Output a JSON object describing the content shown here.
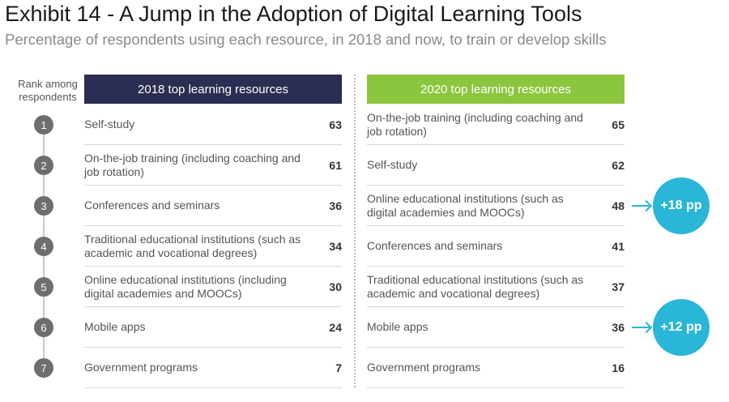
{
  "title": "Exhibit 14 - A Jump in the Adoption of Digital Learning Tools",
  "subtitle": "Percentage of respondents using each resource, in 2018 and now, to train or develop skills",
  "rank_header": "Rank among respondents",
  "headers": {
    "y2018": "2018 top learning resources",
    "y2020": "2020 top learning resources"
  },
  "colors": {
    "header_2018": "#2b2d52",
    "header_2020": "#8cc63f",
    "highlight": "#29b6d8",
    "rank_circle": "#6e6e6e"
  },
  "chart_data": {
    "type": "table",
    "title": "Exhibit 14 - A Jump in the Adoption of Digital Learning Tools",
    "subtitle": "Percentage of respondents using each resource, in 2018 and now, to train or develop skills",
    "ranks": [
      "1",
      "2",
      "3",
      "4",
      "5",
      "6",
      "7"
    ],
    "y2018": [
      {
        "label": "Self-study",
        "value": "63"
      },
      {
        "label": "On-the-job training (including coaching and job rotation)",
        "value": "61"
      },
      {
        "label": "Conferences and seminars",
        "value": "36"
      },
      {
        "label": "Traditional educational institutions (such as academic and vocational degrees)",
        "value": "34"
      },
      {
        "label": "Online educational institutions (including digital academies and MOOCs)",
        "value": "30"
      },
      {
        "label": "Mobile apps",
        "value": "24"
      },
      {
        "label": "Government programs",
        "value": "7"
      }
    ],
    "y2020": [
      {
        "label": "On-the-job training (including coaching and job rotation)",
        "value": "65"
      },
      {
        "label": "Self-study",
        "value": "62"
      },
      {
        "label": "Online educational institutions (such as digital academies and MOOCs)",
        "value": "48"
      },
      {
        "label": "Conferences and seminars",
        "value": "41"
      },
      {
        "label": "Traditional educational institutions (such as academic and vocational degrees)",
        "value": "37"
      },
      {
        "label": "Mobile apps",
        "value": "36"
      },
      {
        "label": "Government programs",
        "value": "16"
      }
    ],
    "callouts": [
      {
        "row": 3,
        "text": "+18 pp"
      },
      {
        "row": 6,
        "text": "+12 pp"
      }
    ]
  }
}
